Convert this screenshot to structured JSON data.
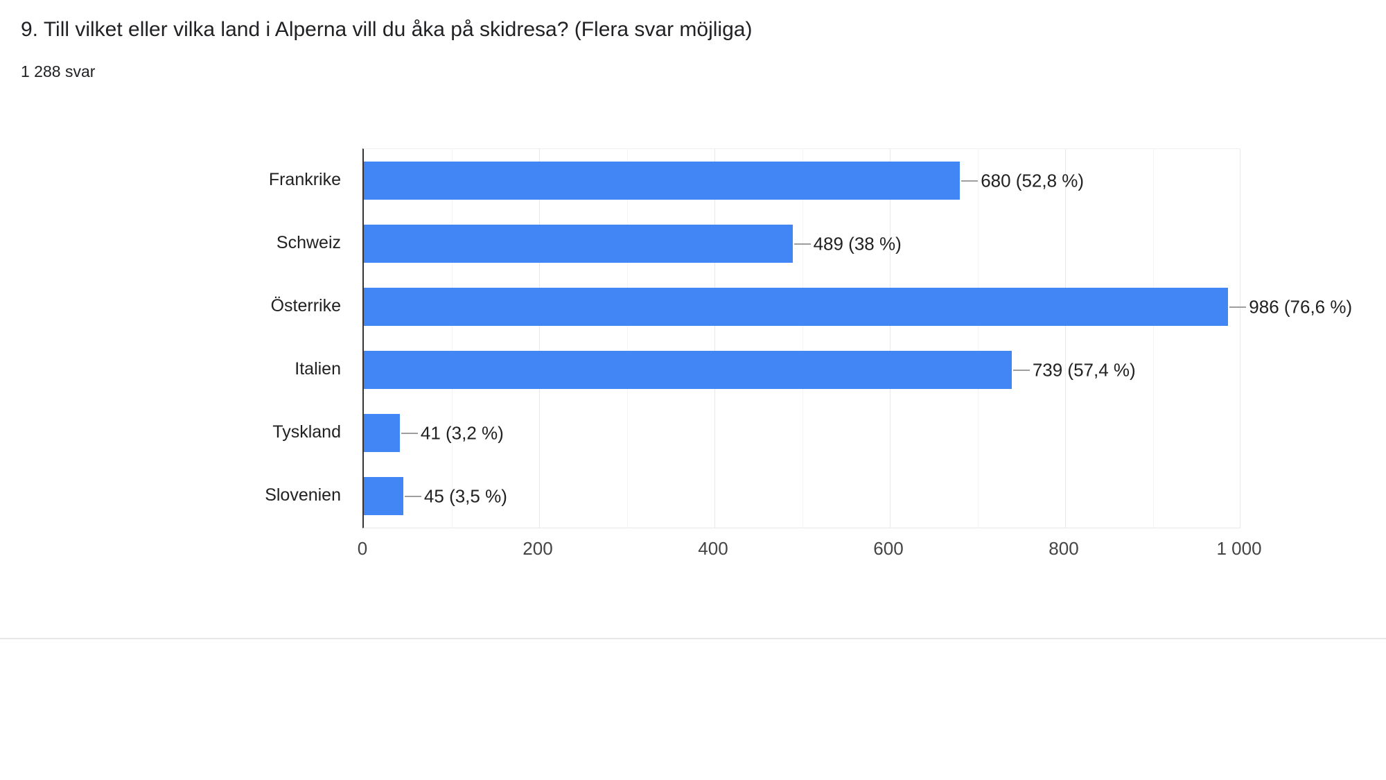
{
  "header": {
    "title": "9. Till vilket eller vilka land i Alperna vill du åka på skidresa? (Flera svar möjliga)",
    "response_count": "1 288 svar"
  },
  "chart_data": {
    "type": "bar",
    "orientation": "horizontal",
    "title": "9. Till vilket eller vilka land i Alperna vill du åka på skidresa? (Flera svar möjliga)",
    "subtitle": "1 288 svar",
    "categories": [
      "Frankrike",
      "Schweiz",
      "Österrike",
      "Italien",
      "Tyskland",
      "Slovenien"
    ],
    "values": [
      680,
      489,
      986,
      739,
      41,
      45
    ],
    "percentages": [
      52.8,
      38,
      76.6,
      57.4,
      3.2,
      3.5
    ],
    "annotations": [
      "680 (52,8 %)",
      "489 (38 %)",
      "986 (76,6 %)",
      "739 (57,4 %)",
      "41 (3,2 %)",
      "45 (3,5 %)"
    ],
    "xlabel": "",
    "ylabel": "",
    "xlim": [
      0,
      1000
    ],
    "x_major_ticks": [
      0,
      200,
      400,
      600,
      800,
      1000
    ],
    "x_tick_labels": [
      "0",
      "200",
      "400",
      "600",
      "800",
      "1 000"
    ],
    "x_minor_gridlines": [
      100,
      300,
      500,
      700,
      900
    ],
    "grid": true,
    "legend": "none",
    "colors": {
      "bar": "#4285f4",
      "title_text": "#202124",
      "category_text": "#212121",
      "annotation_text": "#212121",
      "tick_text": "#444444",
      "axis_line": "#333333",
      "gridline_major": "#e8e8e8",
      "gridline_minor": "#f4f4f4",
      "stem": "#9e9e9e",
      "divider": "#e5e7e9"
    }
  }
}
